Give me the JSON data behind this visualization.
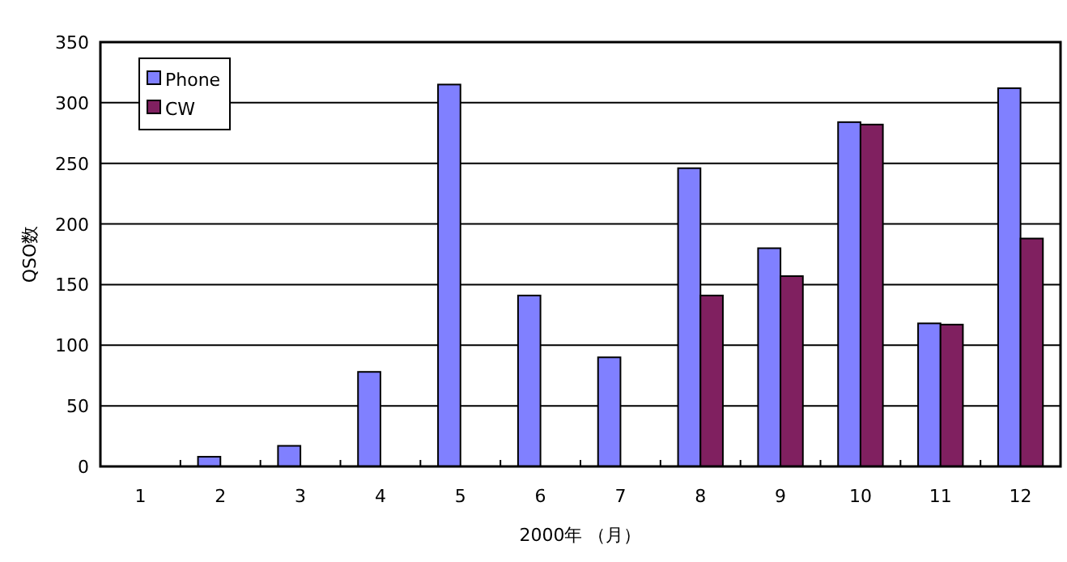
{
  "chart_data": {
    "type": "bar",
    "xlabel": "2000年 （月）",
    "ylabel": "QSO数",
    "categories": [
      "1",
      "2",
      "3",
      "4",
      "5",
      "6",
      "7",
      "8",
      "9",
      "10",
      "11",
      "12"
    ],
    "series": [
      {
        "name": "Phone",
        "color": "#8080ff",
        "values": [
          0,
          8,
          17,
          78,
          315,
          141,
          90,
          246,
          180,
          284,
          118,
          312
        ]
      },
      {
        "name": "CW",
        "color": "#802060",
        "values": [
          0,
          0,
          0,
          0,
          0,
          0,
          0,
          141,
          157,
          282,
          117,
          188
        ]
      }
    ],
    "ylim": [
      0,
      350
    ],
    "yticks": [
      0,
      50,
      100,
      150,
      200,
      250,
      300,
      350
    ],
    "grid": "y",
    "legend": "top left"
  }
}
